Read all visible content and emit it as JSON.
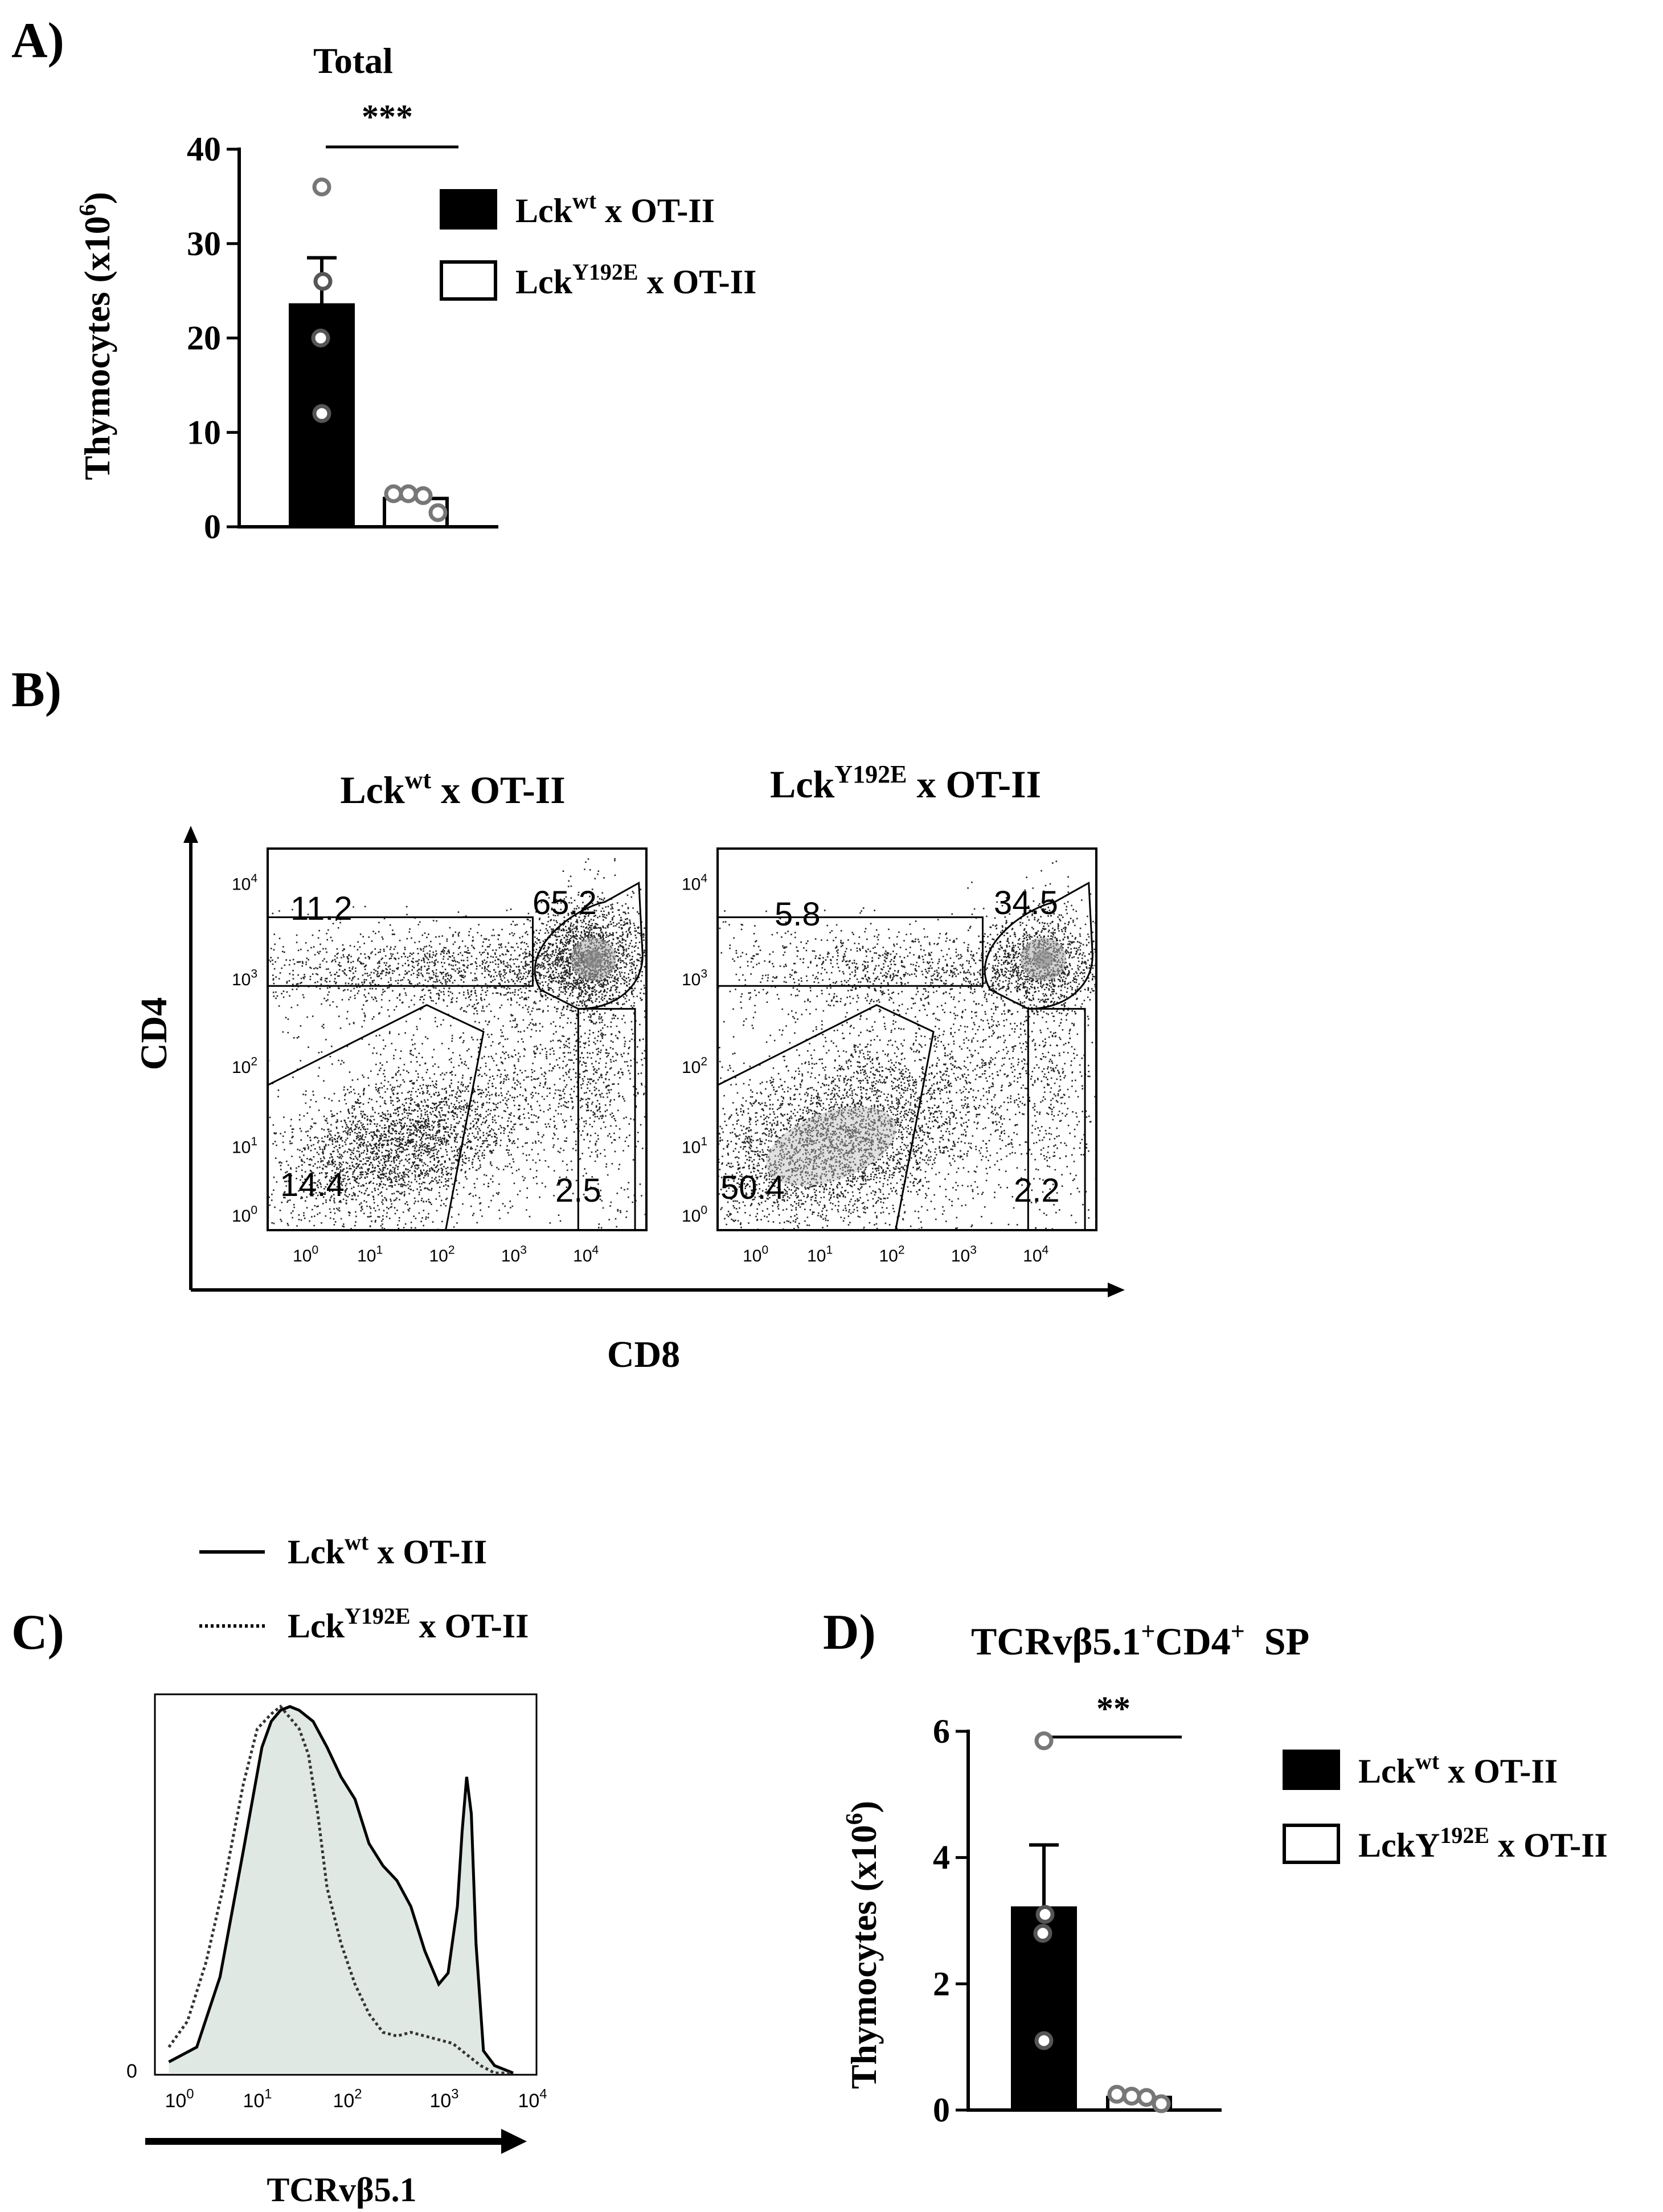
{
  "chart_data": [
    {
      "id": "A",
      "type": "bar",
      "panel_label": "A)",
      "title": "Total",
      "ylabel": "Thymocytes (x10",
      "ylabel_exp": "6",
      "ylabel_close": ")",
      "ylim": [
        0,
        40
      ],
      "yticks": [
        0,
        10,
        20,
        30,
        40
      ],
      "significance": "***",
      "categories": [
        "Lck wt x OT-II",
        "Lck Y192E x OT-II"
      ],
      "values": [
        23.5,
        3.0
      ],
      "errors": [
        5.0,
        0.5
      ],
      "points": [
        [
          36,
          26,
          20,
          12
        ],
        [
          3.5,
          3.5,
          3.3,
          1.5
        ]
      ],
      "legend": [
        {
          "base": "Lck",
          "sup": "wt",
          "rest": " x OT-II",
          "fill": "#000000"
        },
        {
          "base": "Lck",
          "sup": "Y192E",
          "rest": " x OT-II",
          "fill": "#ffffff"
        }
      ]
    },
    {
      "id": "B",
      "type": "scatter",
      "panel_label": "B)",
      "xlabel": "CD8",
      "ylabel": "CD4",
      "axis_ticks": [
        "10",
        "10",
        "10",
        "10",
        "10"
      ],
      "axis_exps": [
        "0",
        "1",
        "2",
        "3",
        "4"
      ],
      "plots": [
        {
          "title_base": "Lck",
          "title_sup": "wt",
          "title_rest": " x OT-II",
          "gates": {
            "CD4_SP": "11.2",
            "DP": "65.2",
            "DN": "14.4",
            "CD8_SP": "2.5"
          }
        },
        {
          "title_base": "Lck",
          "title_sup": "Y192E",
          "title_rest": " x OT-II",
          "gates": {
            "CD4_SP": "5.8",
            "DP": "34.5",
            "DN": "50.4",
            "CD8_SP": "2.2"
          }
        }
      ]
    },
    {
      "id": "C",
      "type": "area",
      "panel_label": "C)",
      "xlabel": "TCRvβ5.1",
      "y_zero_label": "0",
      "x_ticks": [
        "10",
        "10",
        "10",
        "10",
        "10"
      ],
      "x_exps": [
        "0",
        "1",
        "2",
        "3",
        "4"
      ],
      "legend": [
        {
          "base": "Lck",
          "sup": "wt",
          "rest": " x OT-II",
          "style": "solid"
        },
        {
          "base": "Lck",
          "sup": "Y192E",
          "rest": " x OT-II",
          "style": "dotted"
        }
      ],
      "series": [
        {
          "name": "Lck wt x OT-II",
          "x": [
            -0.1,
            0.2,
            0.45,
            0.7,
            0.9,
            1.0,
            1.1,
            1.2,
            1.3,
            1.45,
            1.6,
            1.75,
            1.9,
            2.05,
            2.2,
            2.35,
            2.5,
            2.65,
            2.8,
            2.9,
            3.0,
            3.05,
            3.1,
            3.15,
            3.2,
            3.28,
            3.4,
            3.6
          ],
          "y": [
            0.03,
            0.07,
            0.26,
            0.6,
            0.88,
            0.95,
            0.98,
            0.99,
            0.98,
            0.95,
            0.88,
            0.8,
            0.74,
            0.62,
            0.56,
            0.52,
            0.45,
            0.33,
            0.24,
            0.27,
            0.45,
            0.65,
            0.8,
            0.7,
            0.35,
            0.06,
            0.02,
            0.0
          ]
        },
        {
          "name": "Lck Y192E x OT-II",
          "x": [
            -0.1,
            0.1,
            0.3,
            0.5,
            0.7,
            0.85,
            1.0,
            1.1,
            1.2,
            1.3,
            1.4,
            1.5,
            1.6,
            1.75,
            1.9,
            2.05,
            2.2,
            2.35,
            2.5,
            2.65,
            2.8,
            2.95,
            3.1,
            3.25,
            3.4,
            3.6
          ],
          "y": [
            0.07,
            0.14,
            0.3,
            0.52,
            0.78,
            0.93,
            0.97,
            0.99,
            0.96,
            0.93,
            0.86,
            0.7,
            0.5,
            0.35,
            0.24,
            0.16,
            0.11,
            0.1,
            0.11,
            0.1,
            0.09,
            0.08,
            0.05,
            0.02,
            0.0,
            0.0
          ]
        }
      ]
    },
    {
      "id": "D",
      "type": "bar",
      "panel_label": "D)",
      "title_base": "TCRvβ5.1",
      "title_sup1": "+",
      "title_mid": "CD4",
      "title_sup2": "+",
      "title_rest": "  SP",
      "ylabel": "Thymocytes (x10",
      "ylabel_exp": "6",
      "ylabel_close": ")",
      "ylim": [
        0,
        6
      ],
      "yticks": [
        0,
        2,
        4,
        6
      ],
      "significance": "**",
      "categories": [
        "Lck wt x OT-II",
        "LckY192E x OT-II"
      ],
      "values": [
        3.2,
        0.2
      ],
      "errors": [
        1.0,
        0.05
      ],
      "points": [
        [
          5.85,
          3.1,
          2.8,
          1.1
        ],
        [
          0.25,
          0.22,
          0.2,
          0.1
        ]
      ],
      "legend": [
        {
          "base": "Lck",
          "sup": "wt",
          "rest": " x OT-II",
          "fill": "#000000"
        },
        {
          "base": "LckY",
          "sup": "192E",
          "rest": " x OT-II",
          "fill": "#ffffff"
        }
      ]
    }
  ]
}
